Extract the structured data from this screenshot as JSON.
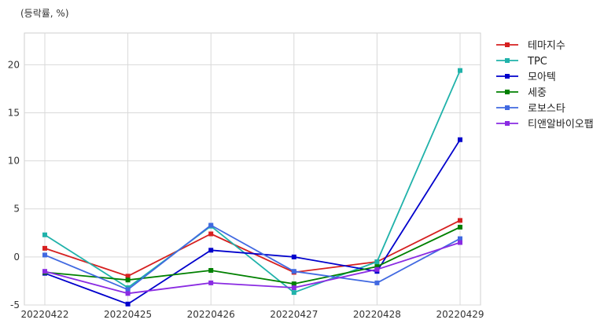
{
  "chart_data": {
    "type": "line",
    "unit_label": "(등락률, %)",
    "title": "",
    "xlabel": "",
    "ylabel": "",
    "categories": [
      "20220422",
      "20220425",
      "20220426",
      "20220427",
      "20220428",
      "20220429"
    ],
    "ylim": [
      -5,
      23.3
    ],
    "yticks": [
      -5,
      0,
      5,
      10,
      15,
      20
    ],
    "grid": true,
    "legend_position": "outside-right-top",
    "series": [
      {
        "name": "테마지수",
        "color": "#d62020",
        "values": [
          0.9,
          -2.0,
          2.4,
          -1.6,
          -0.5,
          3.8
        ]
      },
      {
        "name": "TPC",
        "color": "#20b2aa",
        "values": [
          2.3,
          -3.2,
          3.2,
          -3.7,
          -0.5,
          19.4
        ]
      },
      {
        "name": "모아텍",
        "color": "#0000cc",
        "values": [
          -1.7,
          -4.9,
          0.7,
          0.0,
          -1.5,
          12.2
        ]
      },
      {
        "name": "세중",
        "color": "#008000",
        "values": [
          -1.6,
          -2.4,
          -1.4,
          -2.8,
          -1.0,
          3.1
        ]
      },
      {
        "name": "로보스타",
        "color": "#4169e1",
        "values": [
          0.2,
          -3.4,
          3.3,
          -1.5,
          -2.7,
          1.9
        ]
      },
      {
        "name": "티앤알바이오팹",
        "color": "#8a2be2",
        "values": [
          -1.5,
          -3.8,
          -2.7,
          -3.2,
          -1.3,
          1.5
        ]
      }
    ]
  }
}
